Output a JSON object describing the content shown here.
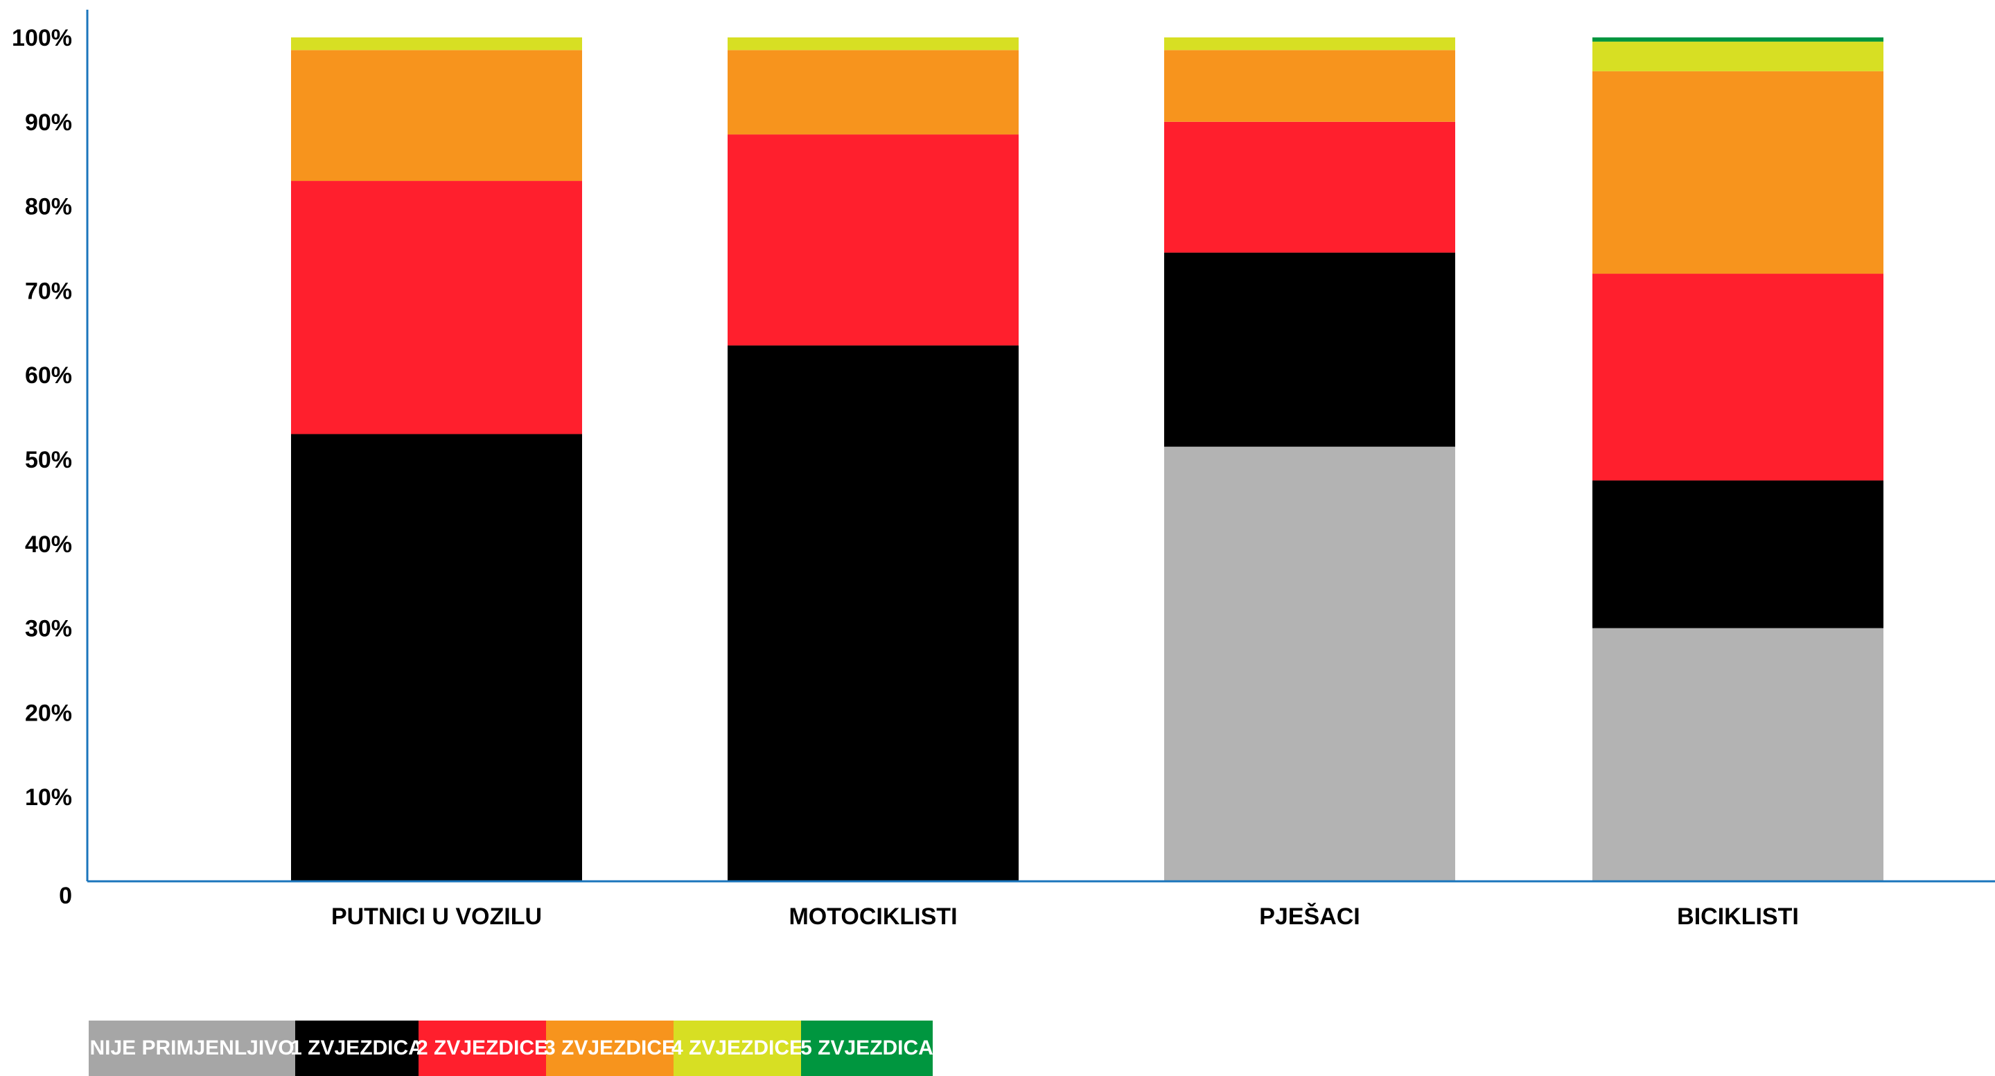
{
  "chart_data": {
    "type": "bar",
    "stacked": true,
    "categories": [
      "PUTNICI U VOZILU",
      "MOTOCIKLISTI",
      "PJEŠACI",
      "BICIKLISTI"
    ],
    "series": [
      {
        "name": "NIJE PRIMJENLJIVO",
        "color": "#b3b3b3",
        "values": [
          0,
          0,
          51.5,
          30
        ]
      },
      {
        "name": "1 ZVJEZDICA",
        "color": "#000000",
        "values": [
          53,
          63.5,
          23,
          17.5
        ]
      },
      {
        "name": "2 ZVJEZDICE",
        "color": "#ff1f2d",
        "values": [
          30,
          25,
          15.5,
          24.5
        ]
      },
      {
        "name": "3 ZVJEZDICE",
        "color": "#f7941d",
        "values": [
          15.5,
          10,
          8.5,
          24
        ]
      },
      {
        "name": "4 ZVJEZDICE",
        "color": "#d7df23",
        "values": [
          1.5,
          1.5,
          1.5,
          3.5
        ]
      },
      {
        "name": "5 ZVJEZDICA",
        "color": "#00963f",
        "values": [
          0,
          0,
          0,
          0.5
        ]
      }
    ],
    "y_ticks": [
      "0",
      "10%",
      "20%",
      "30%",
      "40%",
      "50%",
      "60%",
      "70%",
      "80%",
      "90%",
      "100%"
    ],
    "ylim": [
      0,
      100
    ],
    "title": "",
    "xlabel": "",
    "ylabel": "",
    "legend_position": "bottom-left",
    "grid": false,
    "axis_color": "#1b75bc"
  },
  "legend": {
    "items": [
      {
        "label": "NIJE PRIMJENLJIVO",
        "color": "#a6a6a6"
      },
      {
        "label": "1 ZVJEZDICA",
        "color": "#000000"
      },
      {
        "label": "2 ZVJEZDICE",
        "color": "#ff1f2d"
      },
      {
        "label": "3 ZVJEZDICE",
        "color": "#f7941d"
      },
      {
        "label": "4 ZVJEZDICE",
        "color": "#d7df23"
      },
      {
        "label": "5 ZVJEZDICA",
        "color": "#00963f"
      }
    ]
  }
}
